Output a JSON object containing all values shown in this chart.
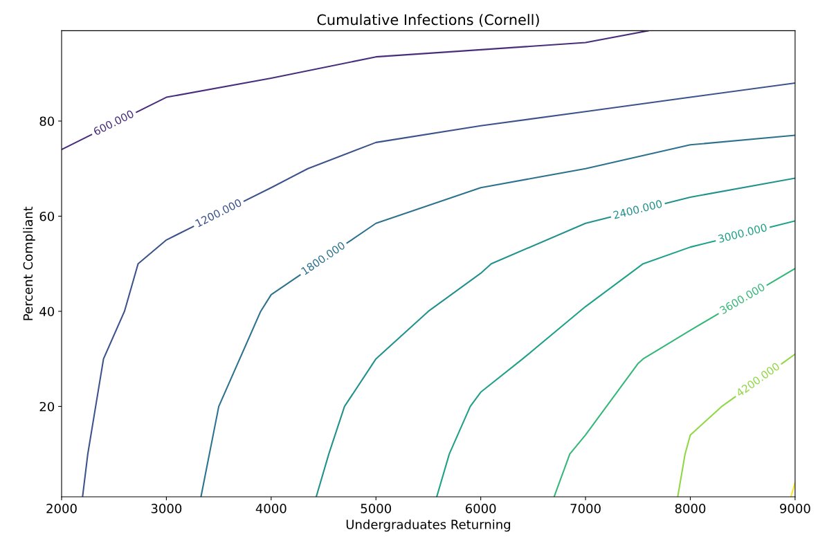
{
  "chart_data": {
    "type": "line",
    "title": "Cumulative Infections (Cornell)",
    "xlabel": "Undergraduates Returning",
    "ylabel": "Percent Compliant",
    "xlim": [
      2000,
      9000
    ],
    "ylim": [
      1,
      99
    ],
    "xticks": [
      2000,
      3000,
      4000,
      5000,
      6000,
      7000,
      8000,
      9000
    ],
    "yticks": [
      20,
      40,
      60,
      80
    ],
    "grid": false,
    "marker": "none",
    "line_style": "solid",
    "series": [
      {
        "name": "600.000",
        "color": "#472d7b",
        "x": [
          2000,
          3000,
          4000,
          5000,
          6000,
          7000,
          7600
        ],
        "values": [
          74,
          85,
          89,
          93.5,
          95,
          96.5,
          99
        ]
      },
      {
        "name": "1200.000",
        "color": "#3b528b",
        "x": [
          2200,
          2250,
          2400,
          2600,
          2730,
          3000,
          4000,
          4350,
          5000,
          6000,
          7000,
          8000,
          9000
        ],
        "values": [
          1,
          10,
          30,
          40,
          50,
          55,
          66,
          70,
          75.5,
          79,
          82,
          85,
          88
        ]
      },
      {
        "name": "1800.000",
        "color": "#2c728e",
        "x": [
          3330,
          3500,
          3700,
          3900,
          4000,
          5000,
          6000,
          7000,
          8000,
          9000
        ],
        "values": [
          1,
          20,
          30,
          40,
          43.5,
          58.5,
          66,
          70,
          75,
          77
        ]
      },
      {
        "name": "2400.000",
        "color": "#21918c",
        "x": [
          4430,
          4550,
          4700,
          5000,
          5500,
          6000,
          6100,
          7000,
          8000,
          9000
        ],
        "values": [
          1,
          10,
          20,
          30,
          40,
          48,
          50,
          58.5,
          64,
          68
        ]
      },
      {
        "name": "3000.000",
        "color": "#1fa088",
        "x": [
          5580,
          5700,
          5900,
          6000,
          6400,
          7000,
          7550,
          8000,
          9000
        ],
        "values": [
          1,
          10,
          20,
          23,
          30,
          41,
          50,
          53.5,
          59
        ]
      },
      {
        "name": "3600.000",
        "color": "#35b779",
        "x": [
          6700,
          6850,
          7000,
          7500,
          7550,
          8000,
          9000
        ],
        "values": [
          1,
          10,
          14,
          29,
          30,
          36,
          49
        ]
      },
      {
        "name": "4200.000",
        "color": "#90d743",
        "x": [
          7880,
          7950,
          8000,
          8300,
          9000
        ],
        "values": [
          1,
          10,
          14,
          20,
          31
        ]
      },
      {
        "color": "#fde725",
        "x": [
          8960,
          9000
        ],
        "values": [
          1,
          4
        ]
      }
    ]
  }
}
